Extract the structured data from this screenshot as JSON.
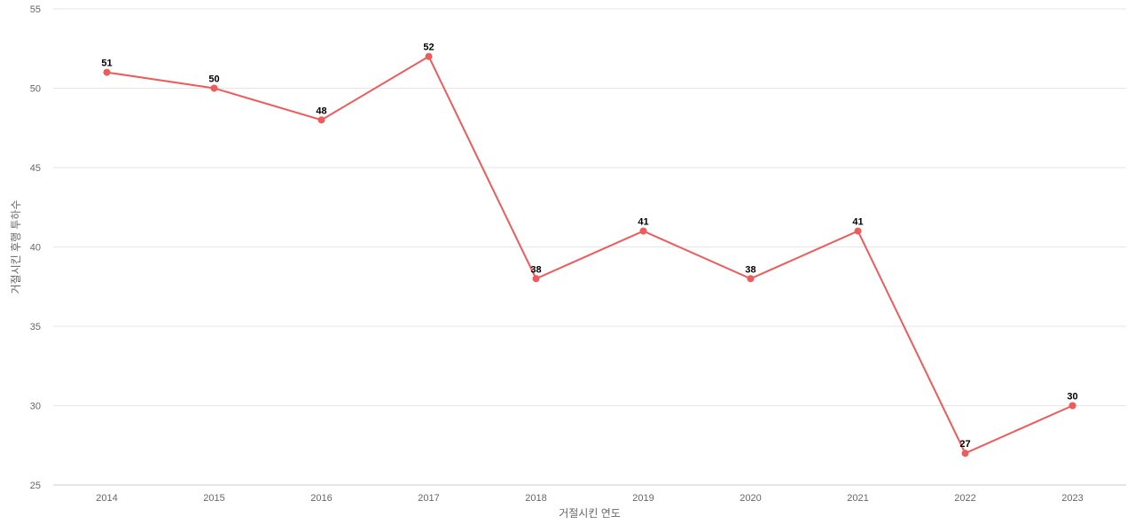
{
  "chart_data": {
    "type": "line",
    "title": "",
    "xlabel": "거절시킨 연도",
    "ylabel": "거절시킨 후행 투하수",
    "categories": [
      "2014",
      "2015",
      "2016",
      "2017",
      "2018",
      "2019",
      "2020",
      "2021",
      "2022",
      "2023"
    ],
    "series": [
      {
        "values": [
          51,
          50,
          48,
          52,
          38,
          41,
          38,
          41,
          27,
          30
        ],
        "color": "#ef5a5a"
      }
    ],
    "ylim": [
      25,
      55
    ],
    "yticks": [
      25,
      30,
      35,
      40,
      45,
      50,
      55
    ],
    "grid": true,
    "data_labels": true
  }
}
